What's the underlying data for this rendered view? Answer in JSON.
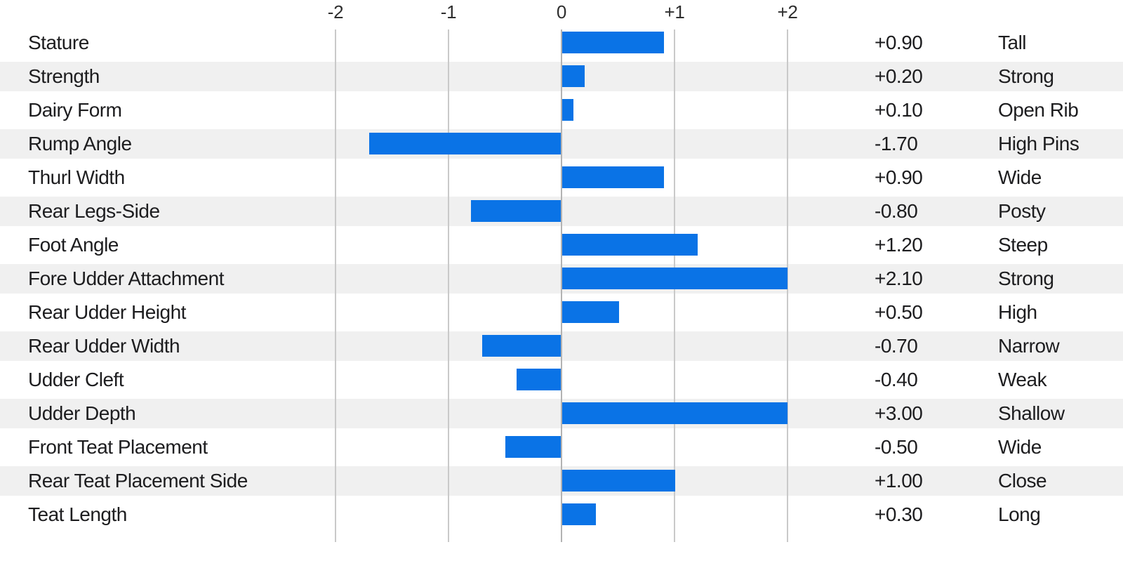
{
  "chart_data": {
    "type": "bar",
    "orientation": "horizontal",
    "title": "",
    "xlabel": "",
    "ylabel": "",
    "xlim": [
      -2,
      2
    ],
    "bars_clamped_to_xlim": true,
    "grid": "vertical-gridlines-on",
    "legend": "none",
    "axis_tick_values": [
      -2,
      -1,
      0,
      1,
      2
    ],
    "axis_tick_labels": [
      "-2",
      "-1",
      "0",
      "+1",
      "+2"
    ],
    "rows": [
      {
        "trait": "Stature",
        "value": 0.9,
        "value_label": "+0.90",
        "descriptor": "Tall"
      },
      {
        "trait": "Strength",
        "value": 0.2,
        "value_label": "+0.20",
        "descriptor": "Strong"
      },
      {
        "trait": "Dairy Form",
        "value": 0.1,
        "value_label": "+0.10",
        "descriptor": "Open Rib"
      },
      {
        "trait": "Rump Angle",
        "value": -1.7,
        "value_label": "-1.70",
        "descriptor": "High Pins"
      },
      {
        "trait": "Thurl Width",
        "value": 0.9,
        "value_label": "+0.90",
        "descriptor": "Wide"
      },
      {
        "trait": "Rear Legs-Side",
        "value": -0.8,
        "value_label": "-0.80",
        "descriptor": "Posty"
      },
      {
        "trait": "Foot Angle",
        "value": 1.2,
        "value_label": "+1.20",
        "descriptor": "Steep"
      },
      {
        "trait": "Fore Udder Attachment",
        "value": 2.1,
        "value_label": "+2.10",
        "descriptor": "Strong"
      },
      {
        "trait": "Rear Udder Height",
        "value": 0.5,
        "value_label": "+0.50",
        "descriptor": "High"
      },
      {
        "trait": "Rear Udder Width",
        "value": -0.7,
        "value_label": "-0.70",
        "descriptor": "Narrow"
      },
      {
        "trait": "Udder Cleft",
        "value": -0.4,
        "value_label": "-0.40",
        "descriptor": "Weak"
      },
      {
        "trait": "Udder Depth",
        "value": 3.0,
        "value_label": "+3.00",
        "descriptor": "Shallow"
      },
      {
        "trait": "Front Teat Placement",
        "value": -0.5,
        "value_label": "-0.50",
        "descriptor": "Wide"
      },
      {
        "trait": "Rear Teat Placement Side",
        "value": 1.0,
        "value_label": "+1.00",
        "descriptor": "Close"
      },
      {
        "trait": "Teat Length",
        "value": 0.3,
        "value_label": "+0.30",
        "descriptor": "Long"
      }
    ]
  },
  "colors": {
    "bar": "#0a73e6",
    "row_band": "#f0f0f0",
    "gridline": "#c9c9c9",
    "zero_gridline": "#b3b3b3",
    "text": "#1d1d1f",
    "tick_text": "#2f2f2f",
    "background": "#ffffff"
  }
}
